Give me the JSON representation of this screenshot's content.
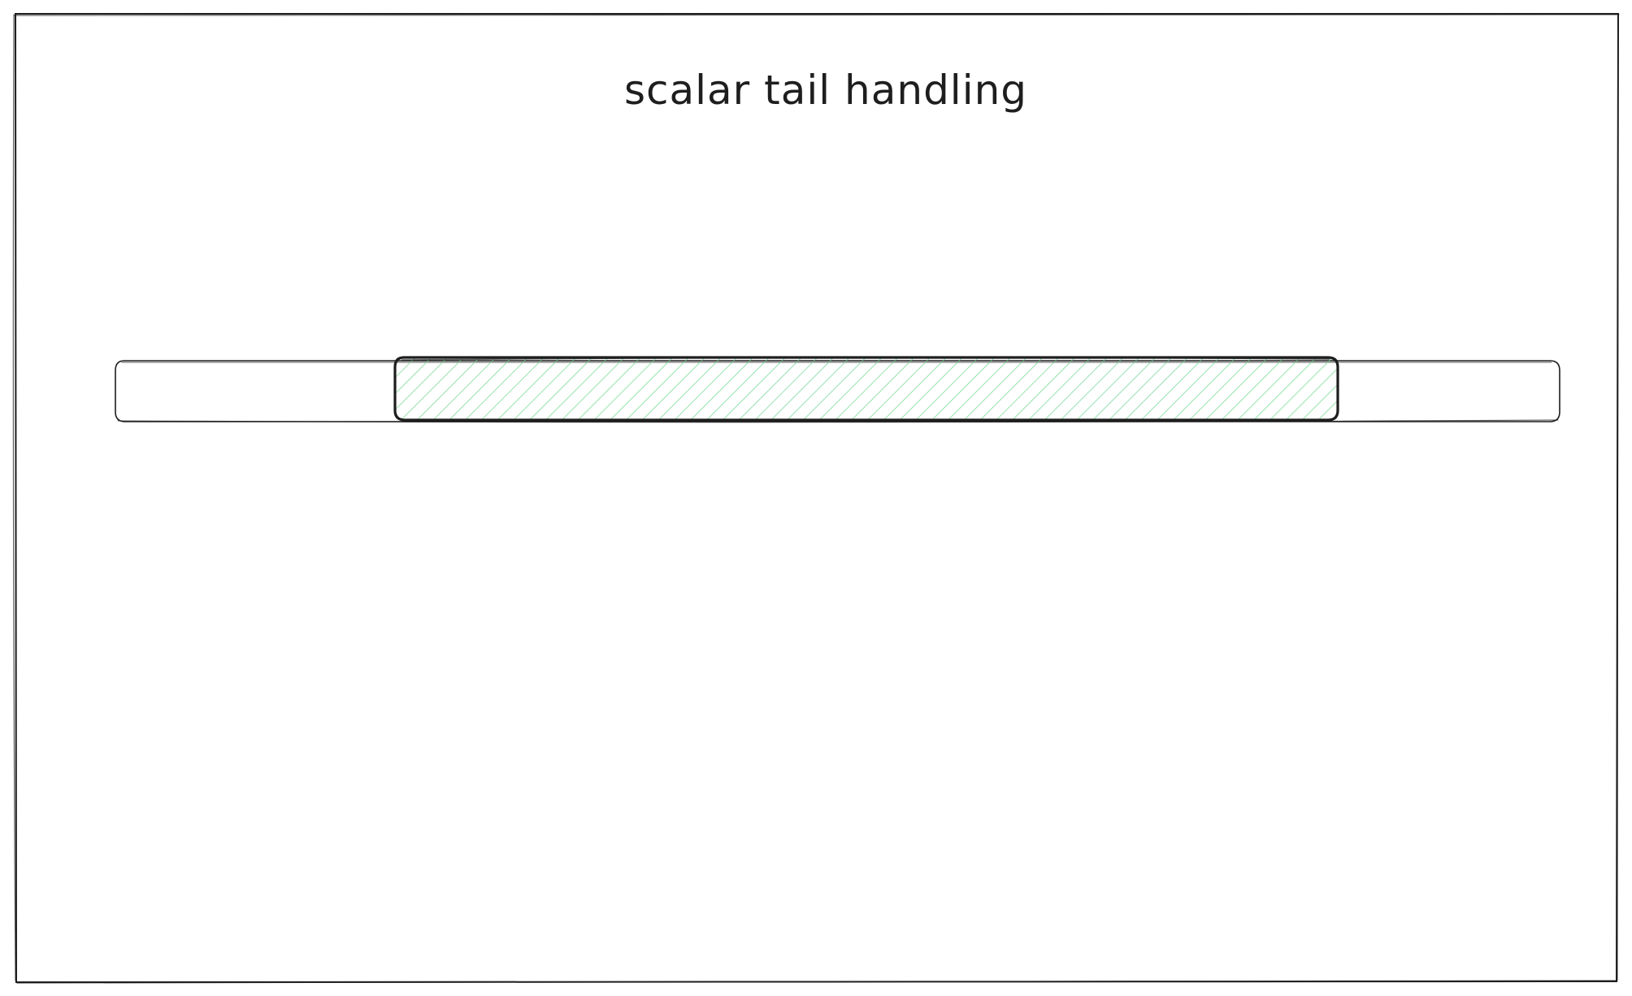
{
  "diagram": {
    "title": "scalar tail handling",
    "colors": {
      "stroke": "#1e1e1e",
      "hatch": "#63d487",
      "background": "#ffffff"
    },
    "bar": {
      "highlighted_fraction_start": 0.193,
      "highlighted_fraction_end": 0.845
    }
  }
}
